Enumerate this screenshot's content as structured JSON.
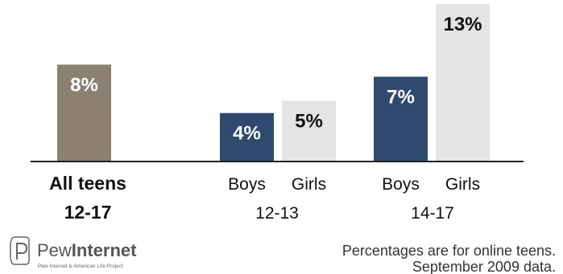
{
  "chart_data": {
    "type": "bar",
    "title": "",
    "xlabel": "",
    "ylabel": "",
    "ylim": [
      0,
      13
    ],
    "grid": false,
    "legend": "none",
    "bars": [
      {
        "group": "All teens 12-17",
        "label": "",
        "value": 8,
        "value_label": "8%",
        "color": "#8c8171",
        "text_color": "#ffffff"
      },
      {
        "group": "12-13",
        "label": "Boys",
        "value": 4,
        "value_label": "4%",
        "color": "#2f4a6e",
        "text_color": "#ffffff"
      },
      {
        "group": "12-13",
        "label": "Girls",
        "value": 5,
        "value_label": "5%",
        "color": "#e3e5e5",
        "text_color": "#111111"
      },
      {
        "group": "14-17",
        "label": "Boys",
        "value": 7,
        "value_label": "7%",
        "color": "#2f4a6e",
        "text_color": "#ffffff"
      },
      {
        "group": "14-17",
        "label": "Girls",
        "value": 13,
        "value_label": "13%",
        "color": "#e3e5e5",
        "text_color": "#111111"
      }
    ],
    "groups": [
      {
        "label_line1": "All teens",
        "label_line2": "12-17",
        "bold": true
      },
      {
        "label_line1": "",
        "label_line2": "12-13",
        "bold": false
      },
      {
        "label_line1": "",
        "label_line2": "14-17",
        "bold": false
      }
    ]
  },
  "branding": {
    "logo_light": "Pew",
    "logo_bold": "Internet",
    "logo_sub": "Pew Internet & American Life Project"
  },
  "footnote": {
    "line1": "Percentages are for online teens.",
    "line2": "September 2009 data."
  },
  "colors": {
    "axis": "#222222",
    "text": "#111111",
    "logo": "#555555"
  }
}
